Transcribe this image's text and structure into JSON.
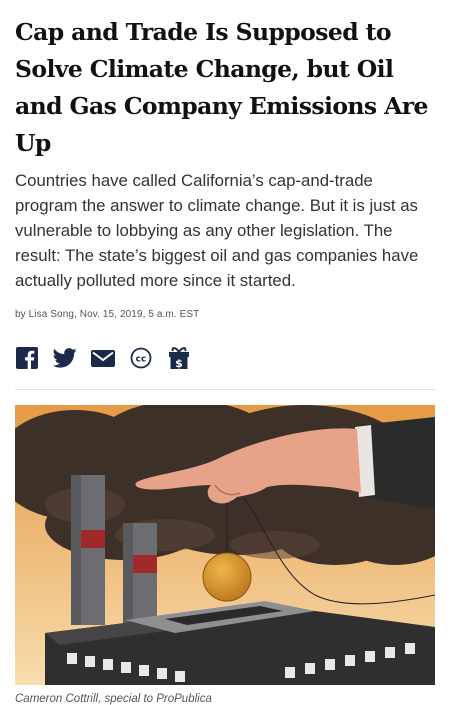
{
  "article": {
    "headline": "Cap and Trade Is Supposed to Solve Climate Change, but Oil and Gas Company Emissions Are Up",
    "dek": "Countries have called California’s cap-and-trade program the answer to climate change. But it is just as vulnerable to lobbying as any other legislation. The result: The state’s biggest oil and gas companies have actually polluted more since it started.",
    "byline": "by Lisa Song, Nov. 15, 2019, 5 a.m. EST",
    "image_credit": "Cameron Cottrill, special to ProPublica"
  },
  "share": {
    "icons": [
      "facebook-icon",
      "twitter-icon",
      "email-icon",
      "creative-commons-icon",
      "gift-icon"
    ],
    "color": "#1b2a4a"
  },
  "colors": {
    "headline": "#111111",
    "sky_top": "#e8a04c",
    "sky_bottom": "#f6d5a0",
    "smoke": "#3b2e26",
    "hand": "#e9a58c",
    "sleeve": "#2b2b2b",
    "coin": "#d4962e",
    "building": "#333333",
    "chimney_band": "#a02a2a"
  }
}
